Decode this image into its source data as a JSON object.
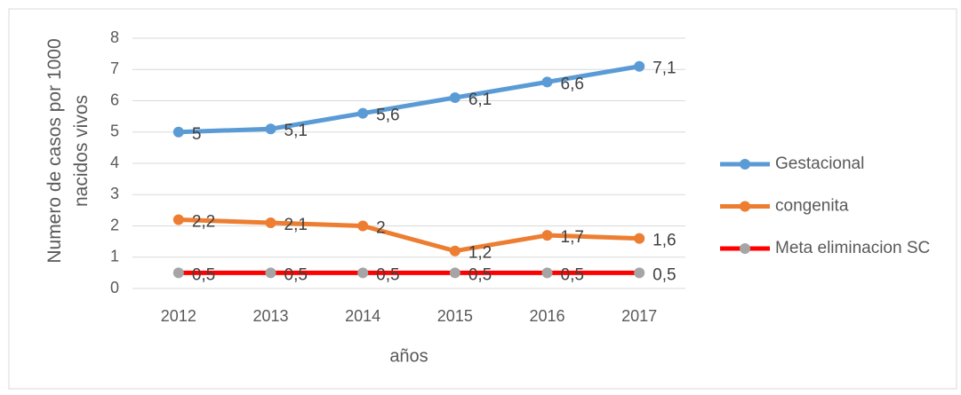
{
  "chart_data": {
    "type": "line",
    "x_label": "años",
    "y_label": "Numero de casos por 1000 nacidos vivos",
    "categories": [
      "2012",
      "2013",
      "2014",
      "2015",
      "2016",
      "2017"
    ],
    "series": [
      {
        "name": "Gestacional",
        "color": "#5b9bd5",
        "marker_color": "#5b9bd5",
        "values": [
          5,
          5.1,
          5.6,
          6.1,
          6.6,
          7.1
        ],
        "value_labels": [
          "5",
          "5,1",
          "5,6",
          "6,1",
          "6,6",
          "7,1"
        ]
      },
      {
        "name": "congenita",
        "color": "#ed7d31",
        "marker_color": "#ed7d31",
        "values": [
          2.2,
          2.1,
          2,
          1.2,
          1.7,
          1.6
        ],
        "value_labels": [
          "2,2",
          "2,1",
          "2",
          "1,2",
          "1,7",
          "1,6"
        ]
      },
      {
        "name": "Meta eliminacion SC",
        "color": "#ff0000",
        "marker_color": "#a5a5a5",
        "values": [
          0.5,
          0.5,
          0.5,
          0.5,
          0.5,
          0.5
        ],
        "value_labels": [
          "0,5",
          "0,5",
          "0,5",
          "0,5",
          "0,5",
          "0,5"
        ]
      }
    ],
    "ylim": [
      0,
      8
    ],
    "yticks": [
      0,
      1,
      2,
      3,
      4,
      5,
      6,
      7,
      8
    ],
    "grid": true,
    "legend": "right"
  }
}
